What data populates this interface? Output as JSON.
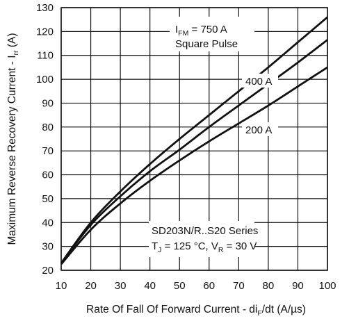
{
  "chart_data": {
    "type": "line",
    "xlabel": {
      "main": "Rate Of Fall Of Forward Current - di",
      "sub": "F",
      "tail": "/dt (A/µs)"
    },
    "ylabel": {
      "main": "Maximum Reverse Recovery Current - I",
      "sub": "rr",
      "tail": " (A)"
    },
    "xlim": [
      10,
      100
    ],
    "ylim": [
      20,
      130
    ],
    "xticks": [
      10,
      20,
      30,
      40,
      50,
      60,
      70,
      80,
      90,
      100
    ],
    "yticks": [
      20,
      30,
      40,
      50,
      60,
      70,
      80,
      90,
      100,
      110,
      120,
      130
    ],
    "grid": true,
    "series": [
      {
        "name": "750 A",
        "x": [
          10,
          20,
          30,
          40,
          50,
          60,
          70,
          80,
          90,
          100
        ],
        "y": [
          23,
          40,
          53,
          64.5,
          75,
          85,
          95,
          105,
          115.5,
          126
        ]
      },
      {
        "name": "400 A",
        "x": [
          10,
          20,
          30,
          40,
          50,
          60,
          70,
          80,
          90,
          100
        ],
        "y": [
          23,
          39,
          51,
          61.5,
          70.5,
          80,
          89,
          98,
          107,
          116.5
        ]
      },
      {
        "name": "200 A",
        "x": [
          10,
          20,
          30,
          40,
          50,
          60,
          70,
          80,
          90,
          100
        ],
        "y": [
          22.5,
          37,
          48,
          57.5,
          66,
          74,
          81.5,
          89,
          97,
          105
        ]
      }
    ],
    "annotations": {
      "ifm": {
        "pre": "I",
        "sub": "FM",
        "post": " = 750 A",
        "line2": "Square Pulse"
      },
      "label_400": "400 A",
      "label_200": "200 A",
      "series_title": "SD203N/R..S20 Series",
      "conditions": {
        "t": "T",
        "t_sub": "J",
        "mid": " = 125 °C, V",
        "v_sub": "R",
        "tail": " = 30 V"
      }
    }
  }
}
